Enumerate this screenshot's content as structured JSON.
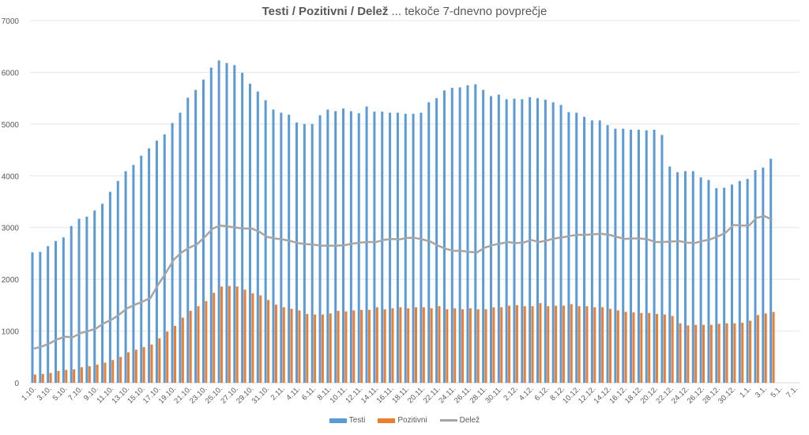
{
  "chart_data": {
    "type": "bar+line",
    "title_bold": "Testi / Pozitivni / Delež",
    "title_rest": " ... tekoče 7-dnevno povprečje",
    "ylim": [
      0,
      7000
    ],
    "y_ticks": [
      "0",
      "1000",
      "2000",
      "3000",
      "4000",
      "5000",
      "6000",
      "7000"
    ],
    "grid": true,
    "legend_position": "bottom",
    "x_tick_labels": [
      "1.10.",
      "3.10.",
      "5.10.",
      "7.10.",
      "9.10.",
      "11.10.",
      "13.10.",
      "15.10.",
      "17.10.",
      "19.10.",
      "21.10.",
      "23.10.",
      "25.10.",
      "27.10.",
      "29.10.",
      "31.10.",
      "2.11.",
      "4.11.",
      "6.11.",
      "8.11.",
      "10.11.",
      "12.11.",
      "14.11.",
      "16.11.",
      "18.11.",
      "20.11.",
      "22.11.",
      "24.11.",
      "26.11.",
      "28.11.",
      "30.11.",
      "2.12.",
      "4.12.",
      "6.12.",
      "8.12.",
      "10.12.",
      "12.12.",
      "14.12.",
      "16.12.",
      "18.12.",
      "20.12.",
      "22.12.",
      "24.12.",
      "26.12.",
      "28.12.",
      "30.12.",
      "1.1.",
      "3.1.",
      "5.1.",
      "7.1."
    ],
    "series": [
      {
        "name": "Testi",
        "kind": "bar",
        "color": "#5b9bd5",
        "values": [
          2520,
          2530,
          2640,
          2740,
          2810,
          3030,
          3170,
          3210,
          3330,
          3460,
          3690,
          3900,
          4090,
          4210,
          4390,
          4530,
          4680,
          4800,
          5020,
          5220,
          5510,
          5660,
          5860,
          6090,
          6230,
          6180,
          6140,
          5990,
          5780,
          5630,
          5460,
          5280,
          5220,
          5180,
          5030,
          5000,
          5000,
          5170,
          5280,
          5250,
          5300,
          5250,
          5210,
          5340,
          5240,
          5240,
          5220,
          5220,
          5200,
          5200,
          5220,
          5420,
          5500,
          5650,
          5700,
          5710,
          5750,
          5770,
          5660,
          5540,
          5570,
          5480,
          5490,
          5480,
          5520,
          5500,
          5470,
          5420,
          5370,
          5230,
          5220,
          5140,
          5070,
          5070,
          4980,
          4910,
          4910,
          4890,
          4890,
          4880,
          4890,
          4790,
          4180,
          4070,
          4090,
          4090,
          3970,
          3920,
          3760,
          3770,
          3830,
          3900,
          3940,
          4110,
          4160,
          4330
        ]
      },
      {
        "name": "Pozitivni",
        "kind": "bar",
        "color": "#ed7d31",
        "values": [
          160,
          170,
          190,
          230,
          250,
          260,
          300,
          320,
          350,
          390,
          440,
          500,
          590,
          640,
          690,
          740,
          860,
          990,
          1100,
          1260,
          1390,
          1480,
          1580,
          1740,
          1860,
          1870,
          1860,
          1800,
          1730,
          1690,
          1600,
          1510,
          1460,
          1430,
          1400,
          1330,
          1320,
          1320,
          1340,
          1390,
          1380,
          1400,
          1410,
          1410,
          1460,
          1420,
          1440,
          1460,
          1440,
          1460,
          1460,
          1440,
          1480,
          1420,
          1440,
          1420,
          1440,
          1420,
          1420,
          1460,
          1460,
          1490,
          1500,
          1480,
          1480,
          1540,
          1480,
          1490,
          1490,
          1520,
          1480,
          1480,
          1460,
          1460,
          1430,
          1400,
          1370,
          1360,
          1350,
          1350,
          1330,
          1320,
          1290,
          1150,
          1110,
          1120,
          1120,
          1120,
          1140,
          1150,
          1150,
          1160,
          1200,
          1310,
          1340,
          1370
        ]
      },
      {
        "name": "Delež",
        "kind": "line",
        "color": "#a5a5a5",
        "values": [
          660,
          700,
          760,
          840,
          890,
          880,
          960,
          1000,
          1050,
          1150,
          1220,
          1320,
          1440,
          1510,
          1570,
          1640,
          1900,
          2130,
          2380,
          2520,
          2610,
          2680,
          2820,
          2980,
          3040,
          3020,
          3000,
          2980,
          2980,
          2920,
          2820,
          2790,
          2770,
          2740,
          2700,
          2680,
          2670,
          2650,
          2650,
          2650,
          2660,
          2690,
          2710,
          2720,
          2720,
          2760,
          2780,
          2770,
          2800,
          2800,
          2770,
          2730,
          2650,
          2590,
          2550,
          2550,
          2530,
          2520,
          2610,
          2660,
          2690,
          2720,
          2700,
          2710,
          2760,
          2720,
          2750,
          2790,
          2810,
          2840,
          2860,
          2860,
          2870,
          2880,
          2860,
          2820,
          2780,
          2790,
          2790,
          2770,
          2720,
          2720,
          2730,
          2740,
          2710,
          2700,
          2740,
          2770,
          2830,
          2900,
          3050,
          3040,
          3040,
          3190,
          3220,
          3150
        ]
      }
    ]
  }
}
